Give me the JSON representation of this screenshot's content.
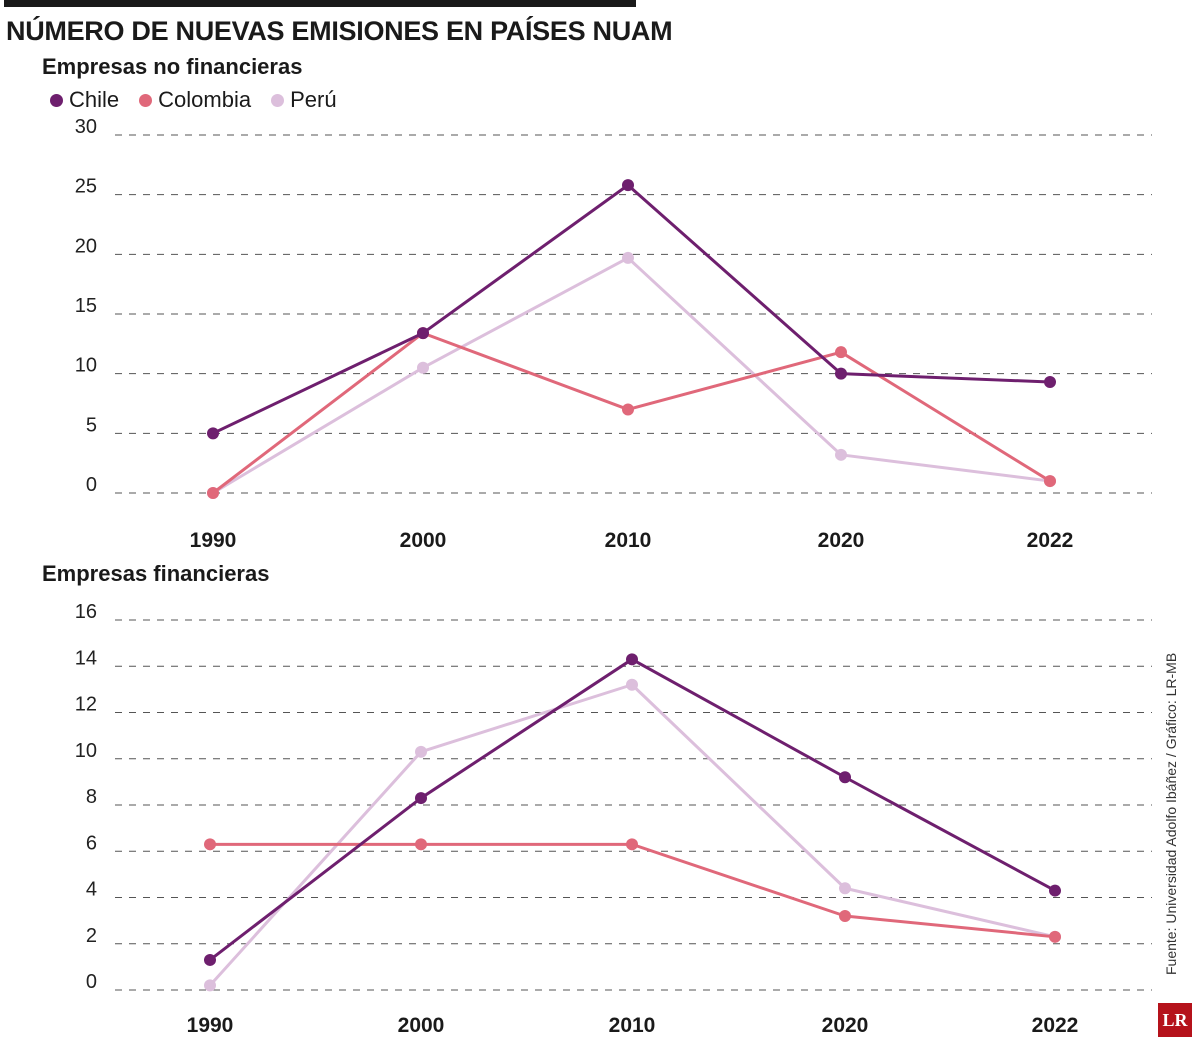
{
  "title": "NÚMERO DE NUEVAS EMISIONES EN PAÍSES NUAM",
  "legend": [
    {
      "label": "Chile",
      "color": "#6e1f6e"
    },
    {
      "label": "Colombia",
      "color": "#e0687a"
    },
    {
      "label": "Perú",
      "color": "#dcbfdc"
    }
  ],
  "source": "Fuente: Universidad Adolfo Ibáñez / Gráfico: LR-MB",
  "logo": "LR",
  "chart_data": [
    {
      "type": "line",
      "title": "Empresas no financieras",
      "categories": [
        "1990",
        "2000",
        "2010",
        "2020",
        "2022"
      ],
      "yticks": [
        "0",
        "5",
        "10",
        "15",
        "20",
        "25",
        "30"
      ],
      "ylim": [
        0,
        30
      ],
      "series": [
        {
          "name": "Chile",
          "color": "#6e1f6e",
          "values": [
            5,
            13.4,
            25.8,
            10,
            9.3
          ]
        },
        {
          "name": "Colombia",
          "color": "#e0687a",
          "values": [
            0,
            13.4,
            7,
            11.8,
            1
          ]
        },
        {
          "name": "Perú",
          "color": "#dcbfdc",
          "values": [
            0,
            10.5,
            19.7,
            3.2,
            1
          ]
        }
      ]
    },
    {
      "type": "line",
      "title": "Empresas financieras",
      "categories": [
        "1990",
        "2000",
        "2010",
        "2020",
        "2022"
      ],
      "yticks": [
        "0",
        "2",
        "4",
        "6",
        "8",
        "10",
        "12",
        "14",
        "16"
      ],
      "ylim": [
        0,
        16
      ],
      "series": [
        {
          "name": "Chile",
          "color": "#6e1f6e",
          "values": [
            1.3,
            8.3,
            14.3,
            9.2,
            4.3
          ]
        },
        {
          "name": "Colombia",
          "color": "#e0687a",
          "values": [
            6.3,
            6.3,
            6.3,
            3.2,
            2.3
          ]
        },
        {
          "name": "Perú",
          "color": "#dcbfdc",
          "values": [
            0.2,
            10.3,
            13.2,
            4.4,
            2.3
          ]
        }
      ]
    }
  ]
}
